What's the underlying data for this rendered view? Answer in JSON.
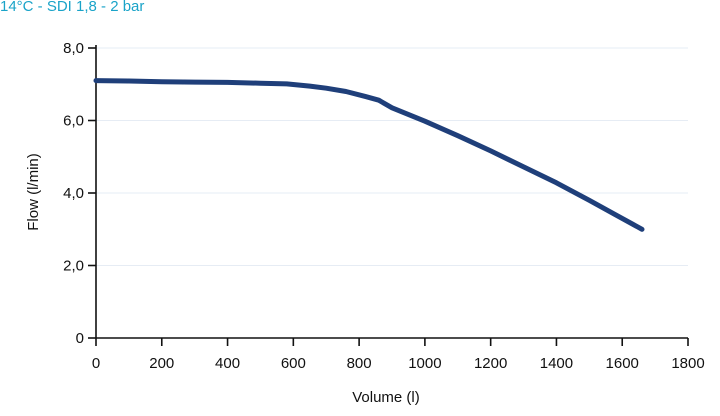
{
  "chart_data": {
    "type": "line",
    "title": "14°C - SDI 1,8 - 2 bar",
    "xlabel": "Volume (l)",
    "ylabel": "Flow (l/min)",
    "xlim": [
      0,
      1800
    ],
    "ylim": [
      0,
      8
    ],
    "x_ticks": [
      0,
      200,
      400,
      600,
      800,
      1000,
      1200,
      1400,
      1600,
      1800
    ],
    "x_tick_labels": [
      "0",
      "200",
      "400",
      "600",
      "800",
      "1000",
      "1200",
      "1400",
      "1600",
      "1800"
    ],
    "y_ticks": [
      0,
      2,
      4,
      6,
      8
    ],
    "y_tick_labels": [
      "0",
      "2,0",
      "4,0",
      "6,0",
      "8,0"
    ],
    "grid": "horizontal",
    "legend": "none",
    "colors": {
      "line": "#1f3f7a",
      "grid": "#e6ecf4",
      "axis": "#111111",
      "title": "#1aa3c8"
    },
    "series": [
      {
        "x": [
          0,
          100,
          200,
          300,
          400,
          500,
          580,
          650,
          700,
          760,
          820,
          860,
          900,
          1000,
          1100,
          1200,
          1300,
          1400,
          1500,
          1580,
          1660
        ],
        "values": [
          7.1,
          7.09,
          7.07,
          7.06,
          7.05,
          7.03,
          7.01,
          6.95,
          6.89,
          6.8,
          6.66,
          6.56,
          6.35,
          5.98,
          5.58,
          5.16,
          4.72,
          4.28,
          3.8,
          3.4,
          3.0
        ]
      }
    ]
  }
}
